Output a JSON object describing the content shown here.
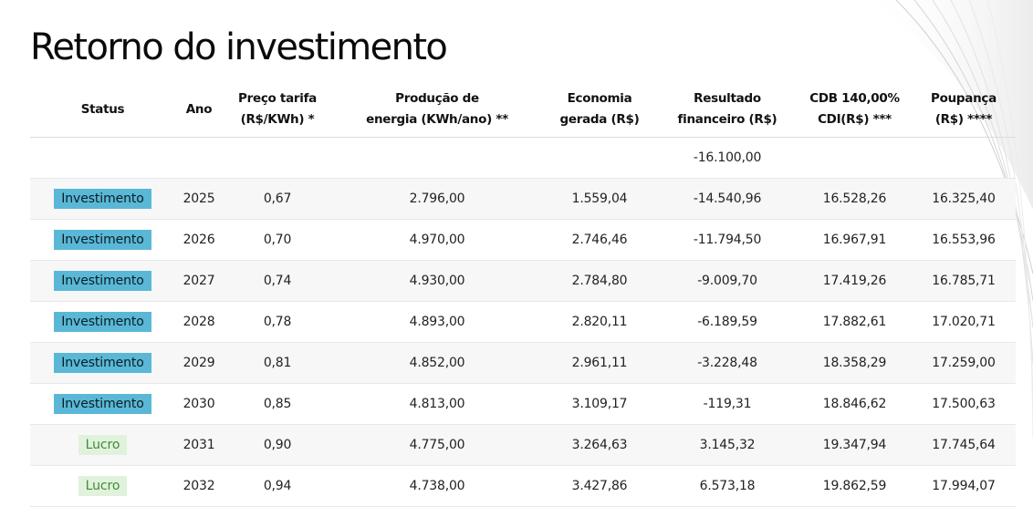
{
  "page": {
    "title": "Retorno do investimento"
  },
  "table": {
    "headers": [
      {
        "line1": "Status",
        "line2": ""
      },
      {
        "line1": "Ano",
        "line2": ""
      },
      {
        "line1": "Preço tarifa",
        "line2": "(R$/KWh) *"
      },
      {
        "line1": "Produção de",
        "line2": "energia (KWh/ano) **"
      },
      {
        "line1": "Economia",
        "line2": "gerada (R$)"
      },
      {
        "line1": "Resultado",
        "line2": "financeiro (R$)"
      },
      {
        "line1": "CDB 140,00%",
        "line2": "CDI(R$) ***"
      },
      {
        "line1": "Poupança",
        "line2": "(R$) ****"
      }
    ],
    "rows": [
      {
        "status": "",
        "status_type": "none",
        "ano": "",
        "preco": "",
        "producao": "",
        "economia": "",
        "resultado": "-16.100,00",
        "cdb": "",
        "poupanca": ""
      },
      {
        "status": "Investimento",
        "status_type": "investimento",
        "ano": "2025",
        "preco": "0,67",
        "producao": "2.796,00",
        "economia": "1.559,04",
        "resultado": "-14.540,96",
        "cdb": "16.528,26",
        "poupanca": "16.325,40"
      },
      {
        "status": "Investimento",
        "status_type": "investimento",
        "ano": "2026",
        "preco": "0,70",
        "producao": "4.970,00",
        "economia": "2.746,46",
        "resultado": "-11.794,50",
        "cdb": "16.967,91",
        "poupanca": "16.553,96"
      },
      {
        "status": "Investimento",
        "status_type": "investimento",
        "ano": "2027",
        "preco": "0,74",
        "producao": "4.930,00",
        "economia": "2.784,80",
        "resultado": "-9.009,70",
        "cdb": "17.419,26",
        "poupanca": "16.785,71"
      },
      {
        "status": "Investimento",
        "status_type": "investimento",
        "ano": "2028",
        "preco": "0,78",
        "producao": "4.893,00",
        "economia": "2.820,11",
        "resultado": "-6.189,59",
        "cdb": "17.882,61",
        "poupanca": "17.020,71"
      },
      {
        "status": "Investimento",
        "status_type": "investimento",
        "ano": "2029",
        "preco": "0,81",
        "producao": "4.852,00",
        "economia": "2.961,11",
        "resultado": "-3.228,48",
        "cdb": "18.358,29",
        "poupanca": "17.259,00"
      },
      {
        "status": "Investimento",
        "status_type": "investimento",
        "ano": "2030",
        "preco": "0,85",
        "producao": "4.813,00",
        "economia": "3.109,17",
        "resultado": "-119,31",
        "cdb": "18.846,62",
        "poupanca": "17.500,63"
      },
      {
        "status": "Lucro",
        "status_type": "lucro",
        "ano": "2031",
        "preco": "0,90",
        "producao": "4.775,00",
        "economia": "3.264,63",
        "resultado": "3.145,32",
        "cdb": "19.347,94",
        "poupanca": "17.745,64"
      },
      {
        "status": "Lucro",
        "status_type": "lucro",
        "ano": "2032",
        "preco": "0,94",
        "producao": "4.738,00",
        "economia": "3.427,86",
        "resultado": "6.573,18",
        "cdb": "19.862,59",
        "poupanca": "17.994,07"
      }
    ]
  },
  "colors": {
    "investimento_badge": "#5ab8d6",
    "lucro_badge": "#e1f2dc",
    "lucro_text": "#3f8b3a",
    "row_stripe": "#f7f7f8"
  }
}
